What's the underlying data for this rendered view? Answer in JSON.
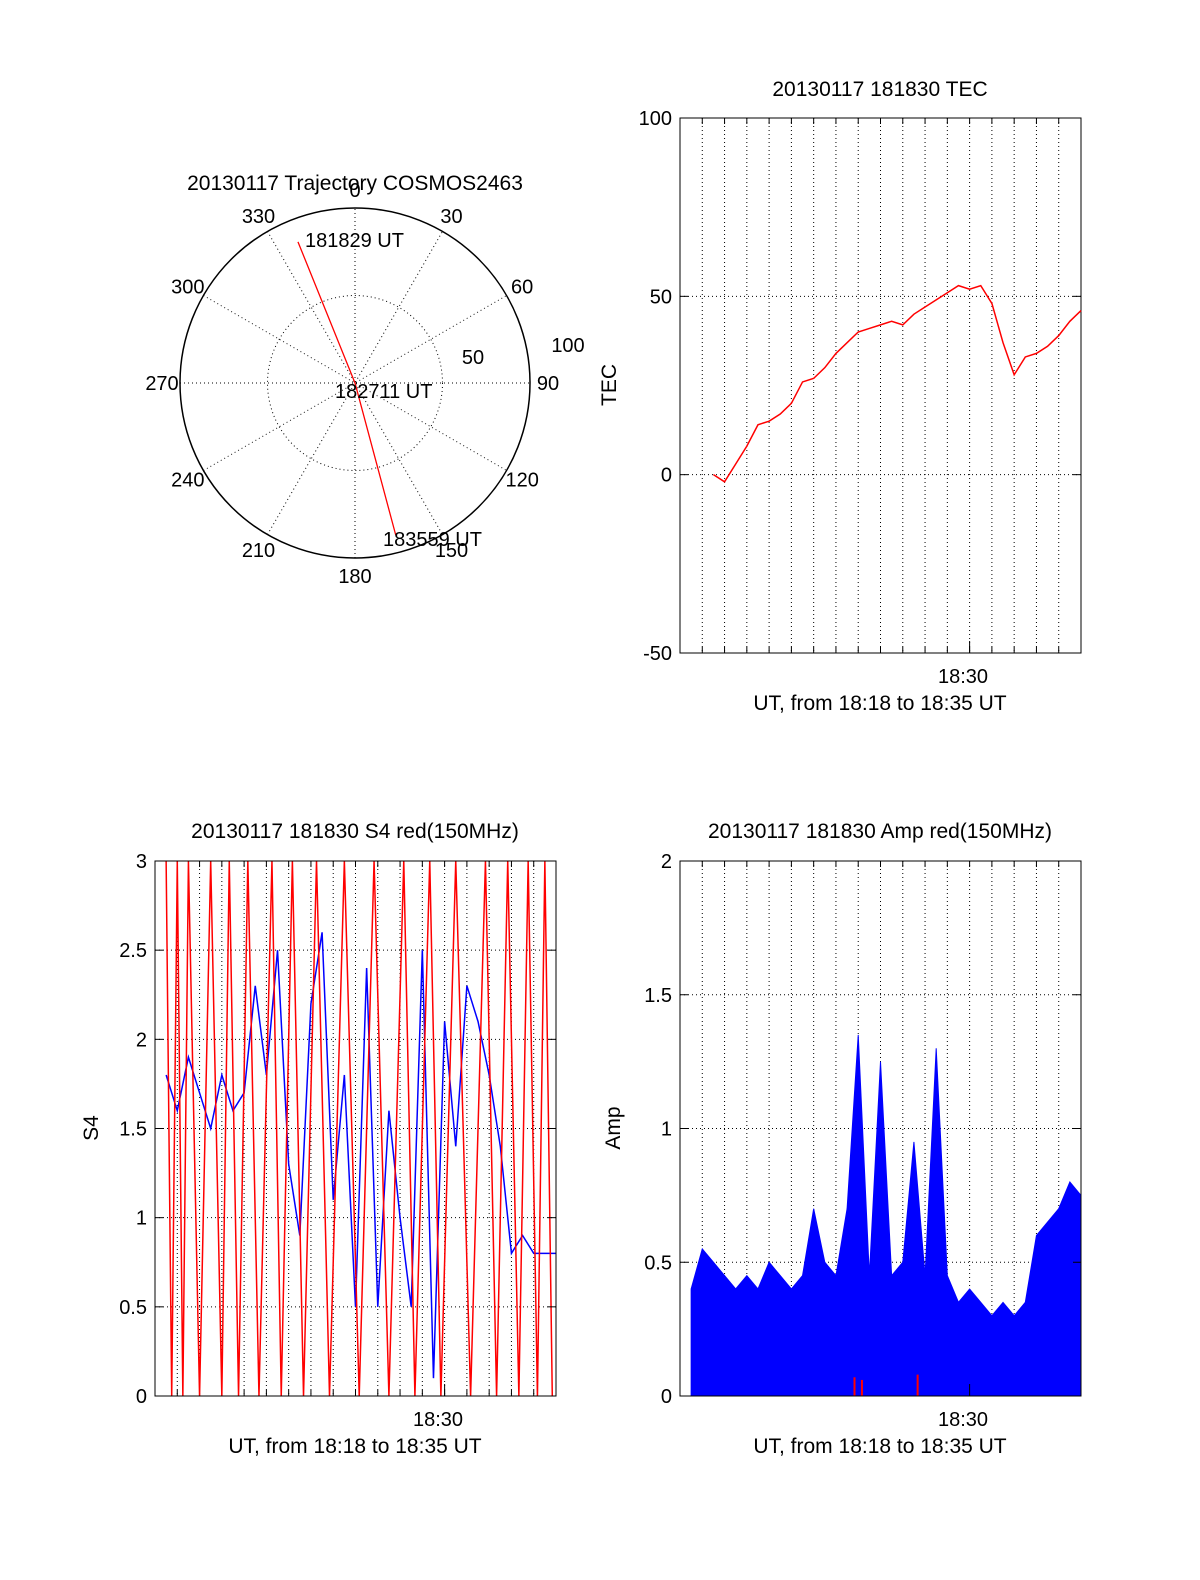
{
  "colors": {
    "red": "#ff0000",
    "blue": "#0000ff",
    "axis": "#000000",
    "grid": "#000000"
  },
  "chart_data": [
    {
      "id": "polar",
      "type": "polar",
      "title": "20130117 Trajectory COSMOS2463",
      "azimuth_labels": [
        "0",
        "30",
        "60",
        "90",
        "120",
        "150",
        "180",
        "210",
        "240",
        "270",
        "300",
        "330"
      ],
      "radial_labels": [
        "50",
        "100"
      ],
      "rlim": [
        0,
        100
      ],
      "grid": true,
      "track": [
        {
          "az": 338,
          "r": 87
        },
        {
          "az": 90,
          "r": 0
        },
        {
          "az": 165,
          "r": 90
        }
      ],
      "annotations": [
        "181829 UT",
        "182711 UT",
        "183559 UT"
      ]
    },
    {
      "id": "tec",
      "type": "line",
      "title": "20130117 181830 TEC",
      "xlabel": "UT, from 18:18 to 18:35 UT",
      "ylabel": "TEC",
      "xlim": [
        "18:17",
        "18:35"
      ],
      "ylim": [
        -50,
        100
      ],
      "ytick_labels": [
        "-50",
        "0",
        "50",
        "100"
      ],
      "xtick_labels": [
        "18:30"
      ],
      "grid": true,
      "series": [
        {
          "color": "#ff0000",
          "x": [
            "18:18:30",
            "18:19:00",
            "18:19:30",
            "18:20:00",
            "18:20:30",
            "18:21:00",
            "18:21:30",
            "18:22:00",
            "18:22:30",
            "18:23:00",
            "18:23:30",
            "18:24:00",
            "18:24:30",
            "18:25:00",
            "18:25:30",
            "18:26:00",
            "18:26:30",
            "18:27:00",
            "18:27:30",
            "18:28:00",
            "18:28:30",
            "18:29:00",
            "18:29:30",
            "18:30:00",
            "18:30:30",
            "18:31:00",
            "18:31:30",
            "18:32:00",
            "18:32:30",
            "18:33:00",
            "18:33:30",
            "18:34:00",
            "18:34:30",
            "18:35:00"
          ],
          "values": [
            0,
            -2,
            3,
            8,
            14,
            15,
            17,
            20,
            26,
            27,
            30,
            34,
            37,
            40,
            41,
            42,
            43,
            42,
            45,
            47,
            49,
            51,
            53,
            52,
            53,
            48,
            37,
            28,
            33,
            34,
            36,
            39,
            43,
            46
          ]
        }
      ]
    },
    {
      "id": "s4",
      "type": "line",
      "title": "20130117 181830 S4 red(150MHz)",
      "xlabel": "UT, from 18:18 to 18:35 UT",
      "ylabel": "S4",
      "xlim": [
        "18:17",
        "18:35"
      ],
      "ylim": [
        0,
        3
      ],
      "ytick_labels": [
        "0",
        "0.5",
        "1",
        "1.5",
        "2",
        "2.5",
        "3"
      ],
      "xtick_labels": [
        "18:30"
      ],
      "grid": true,
      "series": [
        {
          "color": "#0000ff",
          "x": [
            "18:17:30",
            "18:18:00",
            "18:18:30",
            "18:19:00",
            "18:19:30",
            "18:20:00",
            "18:20:30",
            "18:21:00",
            "18:21:30",
            "18:22:00",
            "18:22:30",
            "18:23:00",
            "18:23:30",
            "18:24:00",
            "18:24:30",
            "18:25:00",
            "18:25:30",
            "18:26:00",
            "18:26:30",
            "18:27:00",
            "18:27:30",
            "18:28:00",
            "18:28:30",
            "18:29:00",
            "18:29:30",
            "18:30:00",
            "18:30:30",
            "18:31:00",
            "18:31:30",
            "18:32:00",
            "18:32:30",
            "18:33:00",
            "18:33:30",
            "18:34:00",
            "18:34:30",
            "18:35:00"
          ],
          "values": [
            1.8,
            1.6,
            1.9,
            1.7,
            1.5,
            1.8,
            1.6,
            1.7,
            2.3,
            1.8,
            2.5,
            1.3,
            0.9,
            2.2,
            2.6,
            1.1,
            1.8,
            0.5,
            2.4,
            0.5,
            1.6,
            1.0,
            0.5,
            2.5,
            0.1,
            2.1,
            1.4,
            2.3,
            2.1,
            1.8,
            1.4,
            0.8,
            0.9,
            0.8,
            0.8,
            0.8
          ]
        },
        {
          "color": "#ff0000",
          "x": [
            "18:17:30",
            "18:17:45",
            "18:18:00",
            "18:18:15",
            "18:18:30",
            "18:19:00",
            "18:19:30",
            "18:20:00",
            "18:20:20",
            "18:20:45",
            "18:21:10",
            "18:21:40",
            "18:22:15",
            "18:22:40",
            "18:23:10",
            "18:23:40",
            "18:24:15",
            "18:24:50",
            "18:25:30",
            "18:26:10",
            "18:26:50",
            "18:27:30",
            "18:28:10",
            "18:28:40",
            "18:29:20",
            "18:29:50",
            "18:30:30",
            "18:31:10",
            "18:31:50",
            "18:32:20",
            "18:32:50",
            "18:33:20",
            "18:33:45",
            "18:34:10",
            "18:34:30",
            "18:34:50"
          ],
          "values": [
            3,
            0,
            3,
            0,
            3,
            0,
            3,
            0,
            3,
            0,
            3,
            0,
            3,
            0,
            3,
            0,
            3,
            0,
            3,
            0,
            3,
            0,
            3,
            0,
            3,
            0,
            3,
            0,
            3,
            0,
            3,
            0,
            3,
            0,
            3,
            0
          ]
        }
      ]
    },
    {
      "id": "amp",
      "type": "line",
      "title": "20130117 181830 Amp red(150MHz)",
      "xlabel": "UT, from 18:18 to 18:35 UT",
      "ylabel": "Amp",
      "xlim": [
        "18:17",
        "18:35"
      ],
      "ylim": [
        0,
        2
      ],
      "ytick_labels": [
        "0",
        "0.5",
        "1",
        "1.5",
        "2"
      ],
      "xtick_labels": [
        "18:30"
      ],
      "grid": true,
      "series": [
        {
          "color": "#0000ff",
          "x": [
            "18:17:30",
            "18:18:00",
            "18:18:30",
            "18:19:00",
            "18:19:30",
            "18:20:00",
            "18:20:30",
            "18:21:00",
            "18:21:30",
            "18:22:00",
            "18:22:30",
            "18:23:00",
            "18:23:30",
            "18:24:00",
            "18:24:30",
            "18:25:00",
            "18:25:30",
            "18:26:00",
            "18:26:30",
            "18:27:00",
            "18:27:30",
            "18:28:00",
            "18:28:30",
            "18:29:00",
            "18:29:30",
            "18:30:00",
            "18:30:30",
            "18:31:00",
            "18:31:30",
            "18:32:00",
            "18:32:30",
            "18:33:00",
            "18:33:30",
            "18:34:00",
            "18:34:30",
            "18:35:00"
          ],
          "values": [
            0.4,
            0.55,
            0.5,
            0.45,
            0.4,
            0.45,
            0.4,
            0.5,
            0.45,
            0.4,
            0.45,
            0.7,
            0.5,
            0.45,
            0.7,
            1.35,
            0.45,
            1.25,
            0.45,
            0.5,
            0.95,
            0.45,
            1.3,
            0.45,
            0.35,
            0.4,
            0.35,
            0.3,
            0.35,
            0.3,
            0.35,
            0.6,
            0.65,
            0.7,
            0.8,
            0.75
          ]
        },
        {
          "color": "#ff0000",
          "x": [
            "18:24:50",
            "18:25:10",
            "18:27:40"
          ],
          "values": [
            0.07,
            0.06,
            0.08
          ]
        }
      ]
    }
  ]
}
